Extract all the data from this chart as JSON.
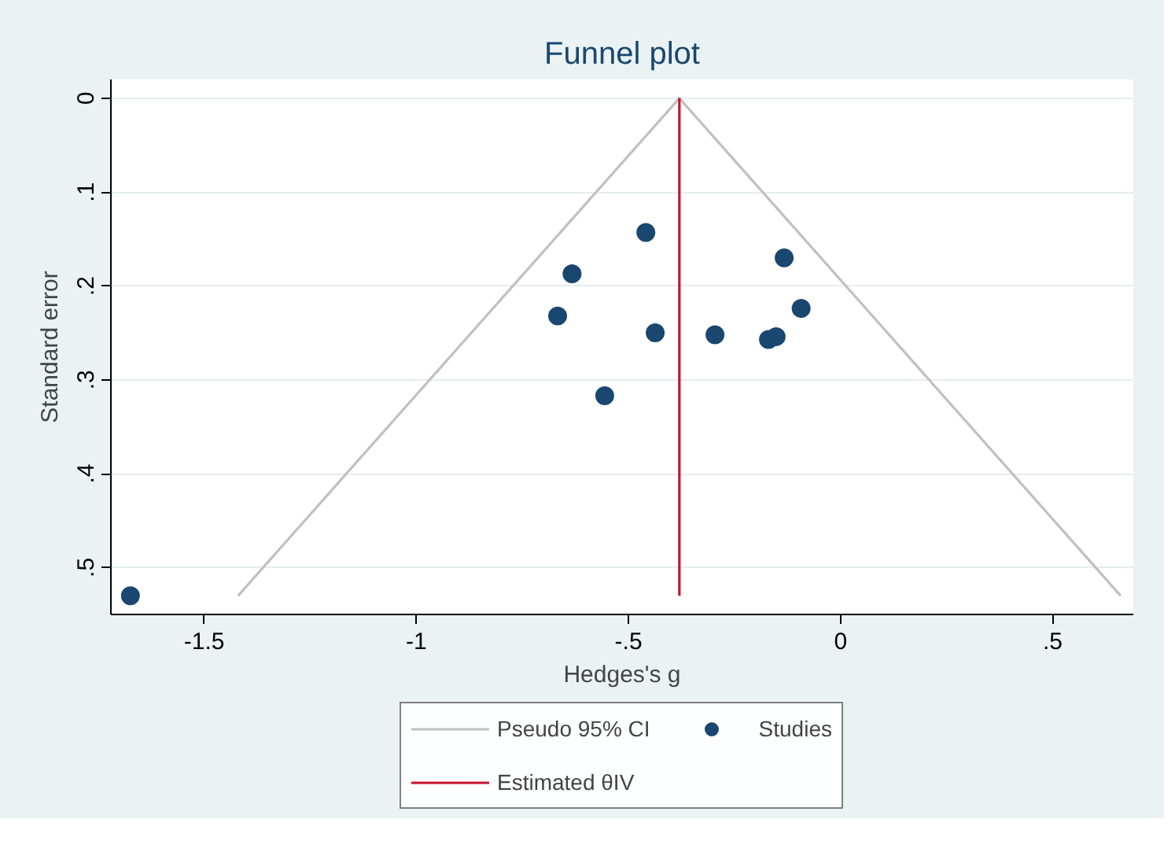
{
  "chart_data": {
    "type": "scatter",
    "title": "Funnel plot",
    "xlabel": "Hedges's g",
    "ylabel": "Standard error",
    "xlim": [
      -1.72,
      0.69
    ],
    "ylim": [
      0.55,
      -0.02
    ],
    "xticks": [
      {
        "value": -1.5,
        "label": "-1.5"
      },
      {
        "value": -1,
        "label": "-1"
      },
      {
        "value": -0.5,
        "label": "-.5"
      },
      {
        "value": 0,
        "label": "0"
      },
      {
        "value": 0.5,
        "label": ".5"
      }
    ],
    "yticks": [
      {
        "value": 0,
        "label": "0"
      },
      {
        "value": 0.1,
        "label": ".1"
      },
      {
        "value": 0.2,
        "label": ".2"
      },
      {
        "value": 0.3,
        "label": ".3"
      },
      {
        "value": 0.4,
        "label": ".4"
      },
      {
        "value": 0.5,
        "label": ".5"
      }
    ],
    "grid": "y",
    "legend": "bottom",
    "marker": "circle",
    "series": [
      {
        "name": "Pseudo 95% CI",
        "type": "line",
        "marker": "none",
        "color": "#c0c0c0",
        "x": [
          -1.42,
          -0.38,
          0.66
        ],
        "values": [
          0.53,
          0,
          0.53
        ]
      },
      {
        "name": "Studies",
        "color": "#1a476f",
        "x": [
          -0.459,
          -0.633,
          -0.667,
          -0.437,
          -0.556,
          -0.296,
          -0.17,
          -0.152,
          -0.133,
          -0.093,
          -1.674
        ],
        "values": [
          0.143,
          0.187,
          0.232,
          0.25,
          0.317,
          0.252,
          0.257,
          0.254,
          0.17,
          0.224,
          0.53
        ]
      },
      {
        "name": "Estimated θIV",
        "type": "line",
        "marker": "none",
        "color": "#c8102e",
        "x": [
          -0.38,
          -0.38
        ],
        "values": [
          0,
          0.53
        ]
      }
    ]
  }
}
